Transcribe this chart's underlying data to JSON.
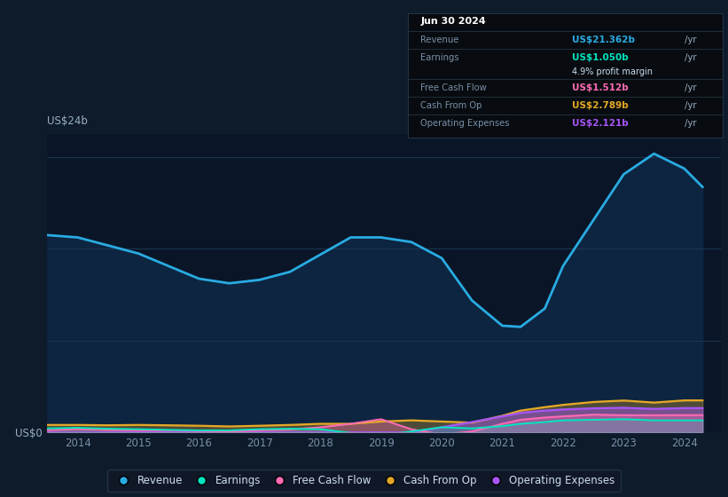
{
  "bg_color": "#0d1b2a",
  "plot_bg_color": "#0a1628",
  "grid_color": "#1e3350",
  "title_label": "US$24b",
  "zero_label": "US$0",
  "ylim": [
    0,
    26
  ],
  "xlim": [
    2013.5,
    2024.6
  ],
  "years": [
    2013.5,
    2014.0,
    2014.5,
    2015.0,
    2015.5,
    2016.0,
    2016.5,
    2017.0,
    2017.5,
    2018.0,
    2018.5,
    2019.0,
    2019.5,
    2020.0,
    2020.5,
    2021.0,
    2021.3,
    2021.7,
    2022.0,
    2022.5,
    2023.0,
    2023.5,
    2024.0,
    2024.3
  ],
  "revenue": [
    17.2,
    17.0,
    16.3,
    15.6,
    14.5,
    13.4,
    13.0,
    13.3,
    14.0,
    15.5,
    17.0,
    17.0,
    16.6,
    15.2,
    11.5,
    9.3,
    9.2,
    10.8,
    14.5,
    18.5,
    22.5,
    24.3,
    23.0,
    21.4
  ],
  "earnings": [
    0.35,
    0.4,
    0.32,
    0.28,
    0.22,
    0.18,
    0.18,
    0.28,
    0.32,
    0.28,
    -0.05,
    -0.25,
    0.08,
    0.45,
    0.35,
    0.55,
    0.75,
    0.9,
    1.05,
    1.1,
    1.15,
    1.05,
    1.05,
    1.05
  ],
  "free_cash_flow": [
    0.2,
    0.28,
    0.22,
    0.18,
    0.18,
    0.13,
    0.08,
    0.18,
    0.25,
    0.45,
    0.75,
    1.15,
    0.28,
    -0.18,
    0.08,
    0.75,
    1.1,
    1.3,
    1.4,
    1.55,
    1.5,
    1.5,
    1.51,
    1.51
  ],
  "cash_from_op": [
    0.65,
    0.65,
    0.62,
    0.65,
    0.62,
    0.58,
    0.52,
    0.58,
    0.65,
    0.75,
    0.75,
    0.95,
    1.05,
    0.95,
    0.85,
    1.45,
    1.9,
    2.2,
    2.4,
    2.65,
    2.78,
    2.6,
    2.789,
    2.789
  ],
  "op_expenses": [
    0.0,
    0.0,
    0.0,
    0.0,
    0.0,
    0.0,
    0.0,
    0.0,
    0.0,
    0.0,
    0.0,
    0.0,
    0.0,
    0.45,
    0.9,
    1.4,
    1.7,
    1.9,
    2.0,
    2.1,
    2.15,
    2.05,
    2.121,
    2.121
  ],
  "revenue_color": "#29abe2",
  "earnings_color": "#00e5c0",
  "fcf_color": "#ff6bb5",
  "cashop_color": "#e5a826",
  "opex_color": "#a855f7",
  "info_box": {
    "date": "Jun 30 2024",
    "rows": [
      {
        "label": "Revenue",
        "value": "US$21.362b",
        "suffix": " /yr",
        "color": "#29abe2",
        "extra": null
      },
      {
        "label": "Earnings",
        "value": "US$1.050b",
        "suffix": " /yr",
        "color": "#00e5c0",
        "extra": "4.9% profit margin"
      },
      {
        "label": "Free Cash Flow",
        "value": "US$1.512b",
        "suffix": " /yr",
        "color": "#ff6bb5",
        "extra": null
      },
      {
        "label": "Cash From Op",
        "value": "US$2.789b",
        "suffix": " /yr",
        "color": "#e5a826",
        "extra": null
      },
      {
        "label": "Operating Expenses",
        "value": "US$2.121b",
        "suffix": " /yr",
        "color": "#a855f7",
        "extra": null
      }
    ]
  },
  "legend_items": [
    {
      "label": "Revenue",
      "color": "#29abe2"
    },
    {
      "label": "Earnings",
      "color": "#00e5c0"
    },
    {
      "label": "Free Cash Flow",
      "color": "#ff6bb5"
    },
    {
      "label": "Cash From Op",
      "color": "#e5a826"
    },
    {
      "label": "Operating Expenses",
      "color": "#a855f7"
    }
  ],
  "xticks": [
    2014,
    2015,
    2016,
    2017,
    2018,
    2019,
    2020,
    2021,
    2022,
    2023,
    2024
  ]
}
